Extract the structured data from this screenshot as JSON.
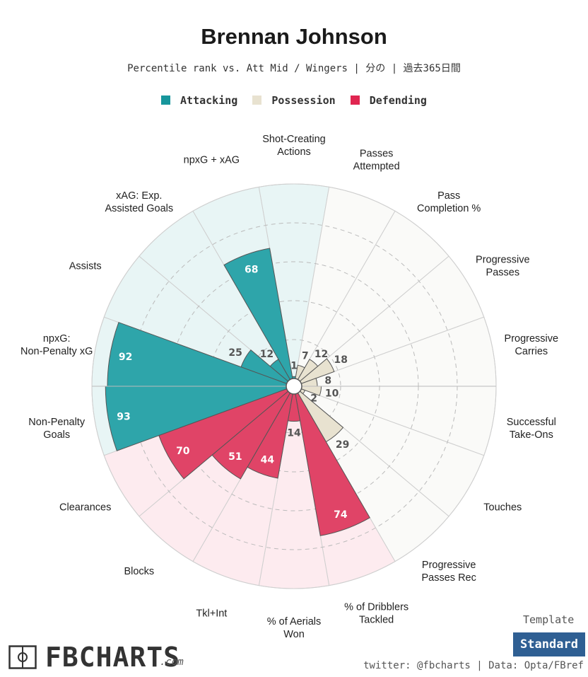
{
  "header": {
    "title": "Brennan Johnson",
    "subtitle": "Percentile rank vs. Att Mid / Wingers | 分の | 過去365日間"
  },
  "legend": {
    "attacking": "Attacking",
    "possession": "Possession",
    "defending": "Defending"
  },
  "colors": {
    "attacking": "#2ea5aa",
    "attacking_bg": "#e8f5f5",
    "possession": "#e8e2d0",
    "possession_bg": "#fafaf8",
    "defending": "#e04467",
    "defending_bg": "#fdebef"
  },
  "chart_data": {
    "type": "polar-bar",
    "title": "Brennan Johnson",
    "subtitle": "Percentile rank vs. Att Mid / Wingers | 分の | 過去365日間",
    "rlim": [
      0,
      100
    ],
    "gridlines": [
      20,
      40,
      60,
      80
    ],
    "series": [
      {
        "label": "Non-Penalty Goals",
        "value": 93,
        "group": "Attacking"
      },
      {
        "label": "npxG: Non-Penalty xG",
        "value": 92,
        "group": "Attacking"
      },
      {
        "label": "Assists",
        "value": 25,
        "group": "Attacking"
      },
      {
        "label": "xAG: Exp. Assisted Goals",
        "value": 12,
        "group": "Attacking"
      },
      {
        "label": "npxG + xAG",
        "value": 68,
        "group": "Attacking"
      },
      {
        "label": "Shot-Creating Actions",
        "value": 1,
        "group": "Attacking"
      },
      {
        "label": "Passes Attempted",
        "value": 7,
        "group": "Possession"
      },
      {
        "label": "Pass Completion %",
        "value": 12,
        "group": "Possession"
      },
      {
        "label": "Progressive Passes",
        "value": 18,
        "group": "Possession"
      },
      {
        "label": "Progressive Carries",
        "value": 8,
        "group": "Possession"
      },
      {
        "label": "Successful Take-Ons",
        "value": 10,
        "group": "Possession"
      },
      {
        "label": "Touches",
        "value": 2,
        "group": "Possession"
      },
      {
        "label": "Progressive Passes Rec",
        "value": 29,
        "group": "Possession"
      },
      {
        "label": "% of Dribblers Tackled",
        "value": 74,
        "group": "Defending"
      },
      {
        "label": "% of Aerials Won",
        "value": 14,
        "group": "Defending"
      },
      {
        "label": "Tkl+Int",
        "value": 44,
        "group": "Defending"
      },
      {
        "label": "Blocks",
        "value": 51,
        "group": "Defending"
      },
      {
        "label": "Clearances",
        "value": 70,
        "group": "Defending"
      }
    ]
  },
  "template": {
    "label": "Template",
    "button": "Standard"
  },
  "footer": {
    "credit": "twitter: @fbcharts | Data: Opta/FBref",
    "logo": "FBCHARTS",
    "logo_suffix": ".com"
  }
}
